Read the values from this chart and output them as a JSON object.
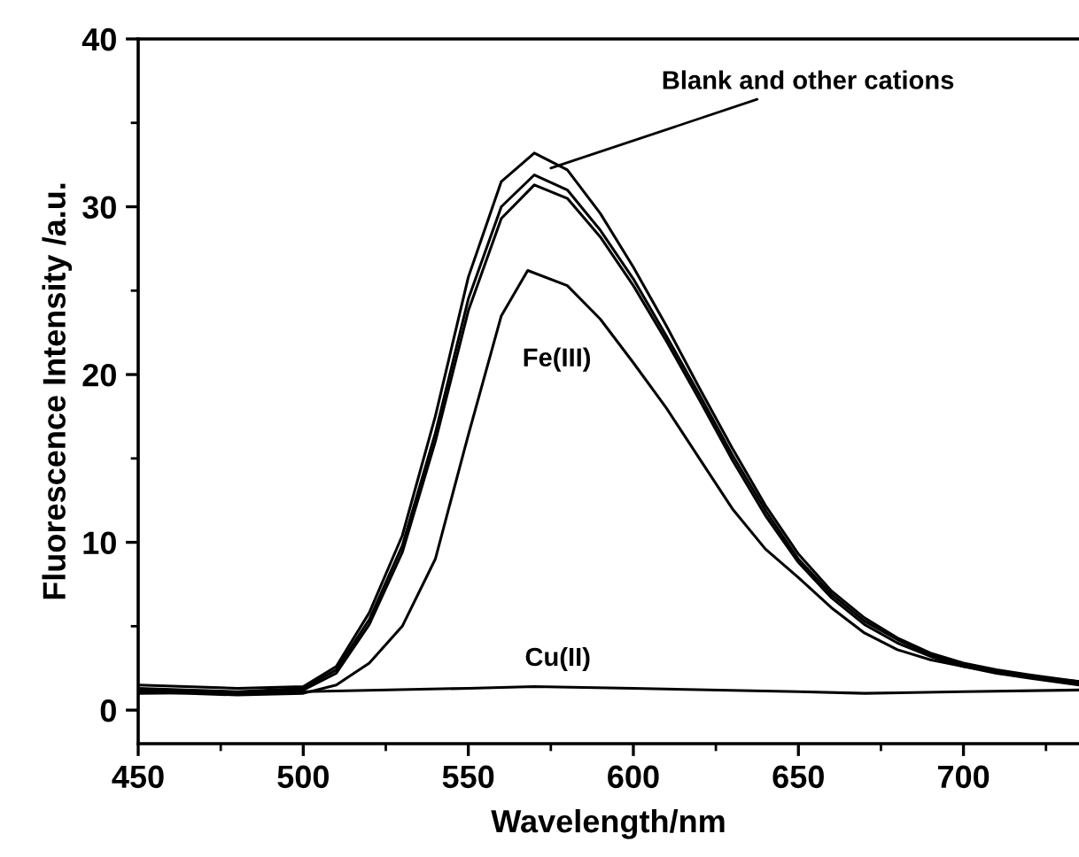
{
  "chart_data": {
    "type": "line",
    "xlabel": "Wavelength/nm",
    "ylabel": "Fluorescence Intensity /a.u.",
    "xlim": [
      450,
      735
    ],
    "xticks": [
      450,
      500,
      550,
      600,
      650,
      700
    ],
    "ylim": [
      -2,
      40
    ],
    "yticks": [
      0,
      10,
      20,
      30,
      40
    ],
    "grid": false,
    "legend": false,
    "marker": "none",
    "line_style": "solid",
    "series": [
      {
        "color": "#000000",
        "x": [
          450,
          480,
          500,
          510,
          520,
          530,
          540,
          550,
          560,
          570,
          580,
          590,
          600,
          610,
          620,
          630,
          640,
          650,
          660,
          670,
          680,
          690,
          700,
          710,
          720,
          735
        ],
        "values": [
          1.3,
          1.1,
          1.3,
          2.4,
          5.4,
          9.8,
          16.5,
          24.5,
          30.0,
          31.9,
          31.0,
          28.6,
          25.7,
          22.3,
          18.8,
          15.2,
          11.9,
          9.0,
          6.9,
          5.3,
          4.2,
          3.3,
          2.7,
          2.3,
          2.0,
          1.6
        ]
      },
      {
        "color": "#000000",
        "x": [
          450,
          480,
          500,
          510,
          520,
          530,
          540,
          550,
          560,
          570,
          580,
          590,
          600,
          610,
          620,
          630,
          640,
          650,
          660,
          670,
          680,
          690,
          700,
          710,
          720,
          735
        ],
        "values": [
          1.5,
          1.3,
          1.4,
          2.6,
          5.8,
          10.4,
          17.5,
          25.8,
          31.5,
          33.2,
          32.2,
          29.6,
          26.4,
          22.9,
          19.2,
          15.6,
          12.2,
          9.3,
          7.1,
          5.5,
          4.3,
          3.4,
          2.8,
          2.4,
          2.1,
          1.7
        ]
      },
      {
        "color": "#000000",
        "x": [
          450,
          480,
          500,
          510,
          520,
          530,
          540,
          550,
          560,
          570,
          580,
          590,
          600,
          610,
          620,
          630,
          640,
          650,
          660,
          670,
          680,
          690,
          700,
          710,
          720,
          735
        ],
        "values": [
          1.2,
          1.0,
          1.2,
          2.2,
          5.1,
          9.4,
          16.0,
          23.8,
          29.3,
          31.3,
          30.5,
          28.2,
          25.3,
          22.0,
          18.5,
          14.9,
          11.6,
          8.8,
          6.7,
          5.1,
          4.0,
          3.2,
          2.6,
          2.2,
          1.9,
          1.5
        ]
      },
      {
        "color": "#000000",
        "x": [
          450,
          480,
          500,
          510,
          520,
          530,
          540,
          550,
          560,
          568,
          580,
          590,
          600,
          610,
          620,
          630,
          640,
          650,
          660,
          670,
          680,
          690,
          700,
          720,
          735
        ],
        "values": [
          1.1,
          0.9,
          1.0,
          1.5,
          2.8,
          5.0,
          9.0,
          16.4,
          23.5,
          26.2,
          25.3,
          23.3,
          20.7,
          18.0,
          15.0,
          12.0,
          9.6,
          7.9,
          6.1,
          4.6,
          3.6,
          3.0,
          2.6,
          2.0,
          1.7
        ]
      },
      {
        "color": "#000000",
        "x": [
          450,
          500,
          550,
          570,
          600,
          650,
          670,
          700,
          735
        ],
        "values": [
          1.0,
          1.1,
          1.3,
          1.4,
          1.3,
          1.1,
          1.0,
          1.1,
          1.2
        ]
      }
    ],
    "annotations": [
      {
        "text": "Blank and other cations",
        "x": 575,
        "y": 32.3
      },
      "Fe(III)",
      "Cu(II)"
    ]
  }
}
